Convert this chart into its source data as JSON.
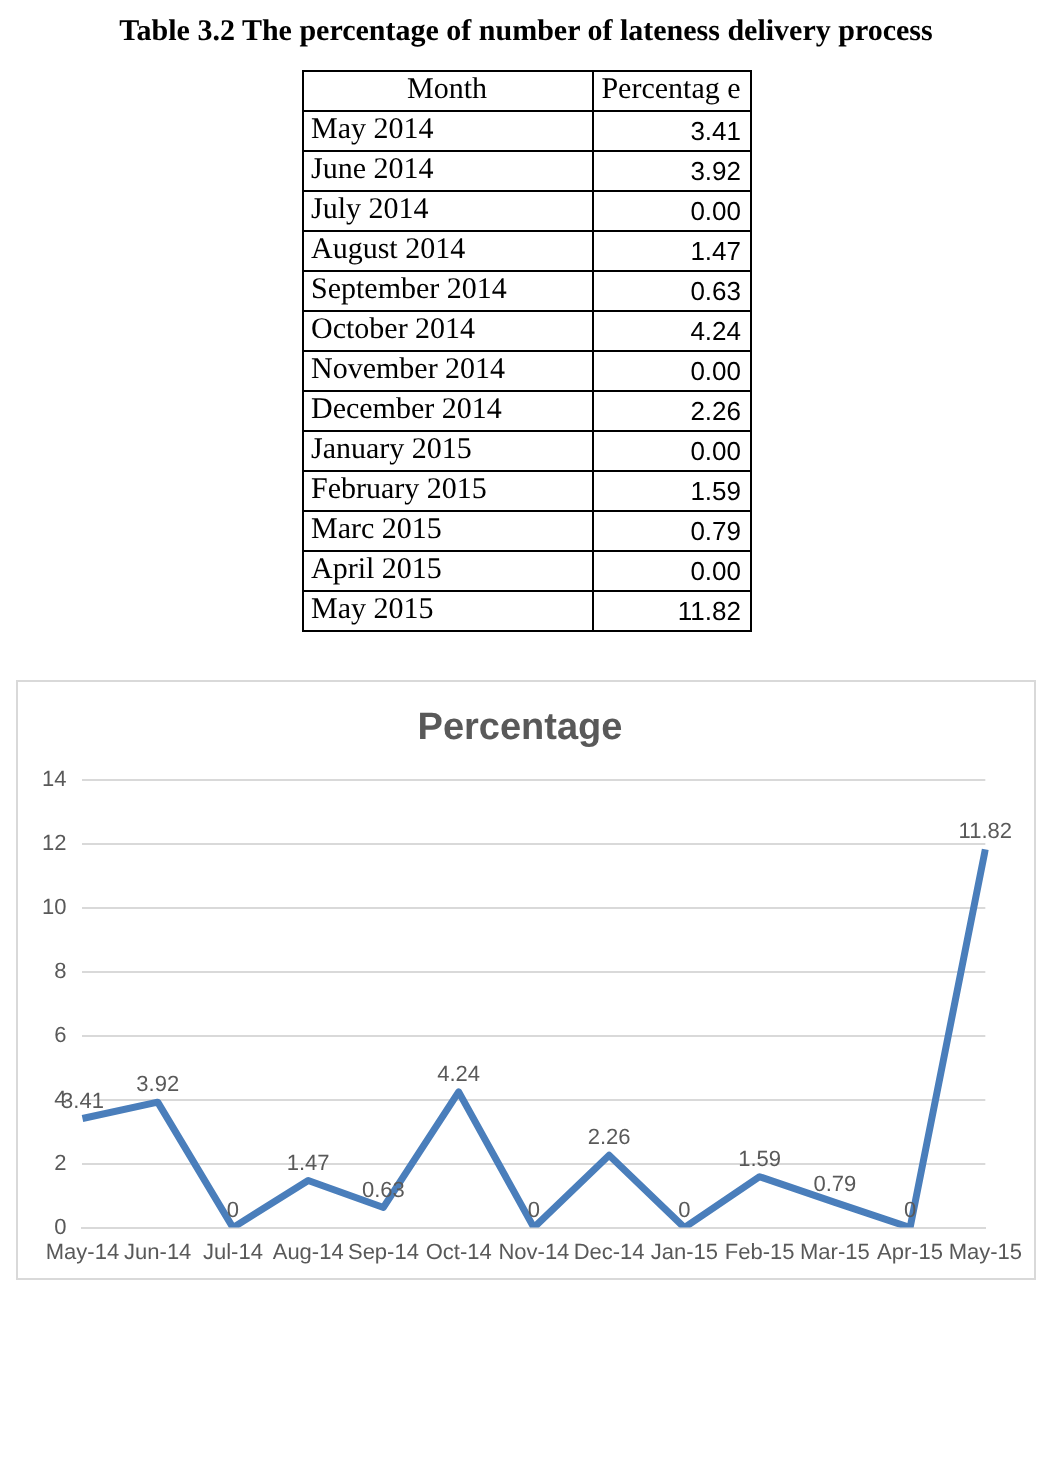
{
  "chart_data": [
    {
      "type": "other",
      "title": "Table 3.2 The percentage of number of lateness delivery process",
      "annotations": [
        "Month",
        "Percentag e"
      ],
      "categories": [
        "May 2014",
        "June 2014",
        "July 2014",
        "August 2014",
        "September 2014",
        "October 2014",
        "November 2014",
        "December 2014",
        "January 2015",
        "February 2015",
        "Marc 2015",
        "April 2015",
        "May 2015"
      ],
      "value_labels": [
        "3.41",
        "3.92",
        "0.00",
        "1.47",
        "0.63",
        "4.24",
        "0.00",
        "2.26",
        "0.00",
        "1.59",
        "0.79",
        "0.00",
        "11.82"
      ]
    },
    {
      "type": "line",
      "title": "Percentage",
      "categories": [
        "May-14",
        "Jun-14",
        "Jul-14",
        "Aug-14",
        "Sep-14",
        "Oct-14",
        "Nov-14",
        "Dec-14",
        "Jan-15",
        "Feb-15",
        "Mar-15",
        "Apr-15",
        "May-15"
      ],
      "series": [
        {
          "color": "#4a7ebb",
          "values": [
            3.41,
            3.92,
            0,
            1.47,
            0.63,
            4.24,
            0,
            2.26,
            0,
            1.59,
            0.79,
            0,
            11.82
          ]
        }
      ],
      "ylim": [
        0,
        14
      ],
      "yticks": [
        0,
        2,
        4,
        6,
        8,
        10,
        12,
        14
      ],
      "grid": "y",
      "legend": false,
      "marker": "none",
      "line_style": "solid",
      "data_labels": true
    }
  ]
}
